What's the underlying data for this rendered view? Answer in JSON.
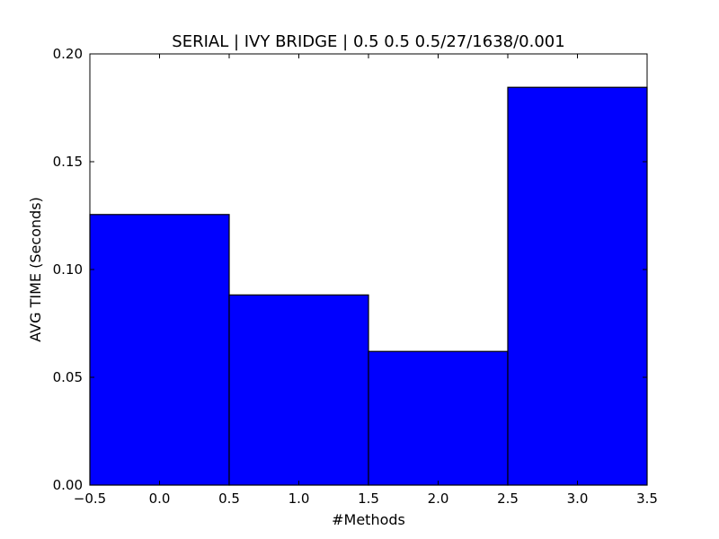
{
  "chart_data": {
    "type": "bar",
    "title": "SERIAL | IVY BRIDGE | 0.5 0.5 0.5/27/1638/0.001",
    "xlabel": "#Methods",
    "ylabel": "AVG TIME (Seconds)",
    "x": [
      0,
      1,
      2,
      3
    ],
    "values": [
      0.1255,
      0.0882,
      0.062,
      0.1845
    ],
    "bar_width": 1.0,
    "xlim": [
      -0.5,
      3.5
    ],
    "ylim": [
      0.0,
      0.2
    ],
    "xticks": [
      -0.5,
      0.0,
      0.5,
      1.0,
      1.5,
      2.0,
      2.5,
      3.0,
      3.5
    ],
    "xtick_labels": [
      "−0.5",
      "0.0",
      "0.5",
      "1.0",
      "1.5",
      "2.0",
      "2.5",
      "3.0",
      "3.5"
    ],
    "yticks": [
      0.0,
      0.05,
      0.1,
      0.15,
      0.2
    ],
    "ytick_labels": [
      "0.00",
      "0.05",
      "0.10",
      "0.15",
      "0.20"
    ],
    "grid": false,
    "bar_color": "#0000ff",
    "edge_color": "#000000"
  }
}
